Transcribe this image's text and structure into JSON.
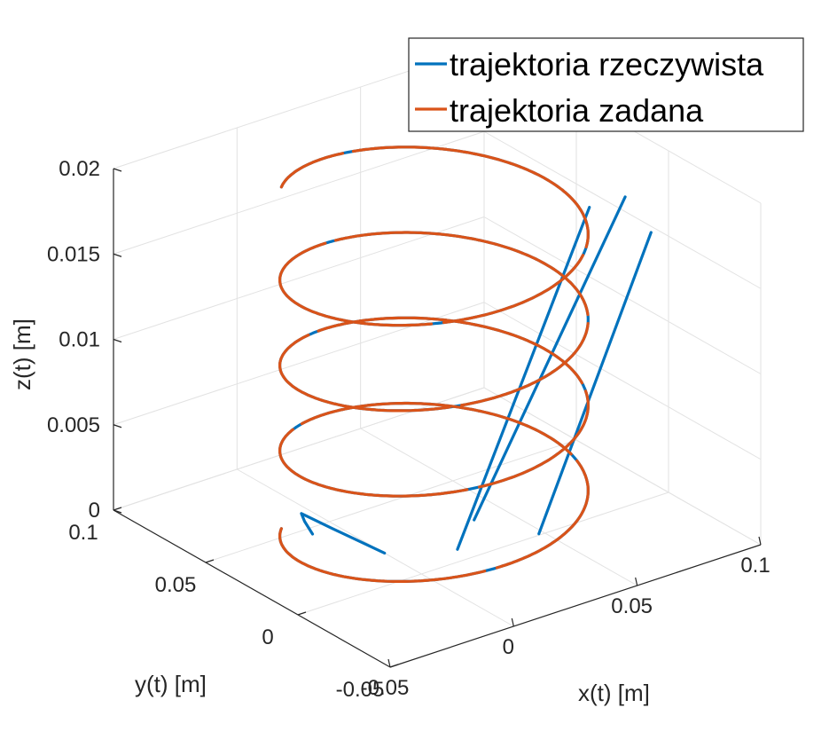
{
  "chart_data": {
    "type": "line",
    "subtype": "3d-helix",
    "xlabel": "x(t)   [m]",
    "ylabel": "y(t)   [m]",
    "zlabel": "z(t)   [m]",
    "xlim": [
      -0.05,
      0.1
    ],
    "ylim": [
      -0.05,
      0.1
    ],
    "zlim": [
      0,
      0.02
    ],
    "xticks": [
      {
        "value": -0.05,
        "label": "-0.05"
      },
      {
        "value": 0,
        "label": "0"
      },
      {
        "value": 0.05,
        "label": "0.05"
      },
      {
        "value": 0.1,
        "label": "0.1"
      }
    ],
    "yticks": [
      {
        "value": -0.05,
        "label": "-0.05"
      },
      {
        "value": 0,
        "label": "0"
      },
      {
        "value": 0.05,
        "label": "0.05"
      },
      {
        "value": 0.1,
        "label": "0.1"
      }
    ],
    "zticks": [
      {
        "value": 0,
        "label": "0"
      },
      {
        "value": 0.005,
        "label": "0.005"
      },
      {
        "value": 0.01,
        "label": "0.01"
      },
      {
        "value": 0.015,
        "label": "0.015"
      },
      {
        "value": 0.02,
        "label": "0.02"
      }
    ],
    "grid": true,
    "legend": {
      "position": "top-right",
      "entries": [
        {
          "label": "trajektoria rzeczywista",
          "color": "#0072bd"
        },
        {
          "label": "trajektoria zadana",
          "color": "#d95319"
        }
      ]
    },
    "helix": {
      "center_x": 0.02,
      "center_y": 0.02,
      "radius": 0.05,
      "pitch": 0.005,
      "z_start": 0,
      "z_end": 0.02
    },
    "series": [
      {
        "name": "trajektoria rzeczywista",
        "color": "#0072bd",
        "description_points": [
          [
            0.0,
            0.02,
            0.0
          ],
          [
            -0.01,
            0.035,
            0.001
          ],
          [
            -0.015,
            0.045,
            0.0015
          ],
          [
            -0.01,
            0.05,
            0.0005
          ],
          [
            -0.006,
            0.051,
            -0.0005
          ]
        ],
        "lines": [
          {
            "from": [
              0.028,
              0.018,
              -0.001
            ],
            "to": [
              0.062,
              -0.008,
              0.019
            ]
          },
          {
            "from": [
              0.034,
              0.017,
              0.0005
            ],
            "to": [
              0.072,
              -0.014,
              0.0195
            ]
          },
          {
            "from": [
              0.052,
              0.006,
              -0.0005
            ],
            "to": [
              0.078,
              -0.02,
              0.0175
            ]
          }
        ]
      },
      {
        "name": "trajektoria zadana",
        "color": "#d95319"
      }
    ]
  }
}
